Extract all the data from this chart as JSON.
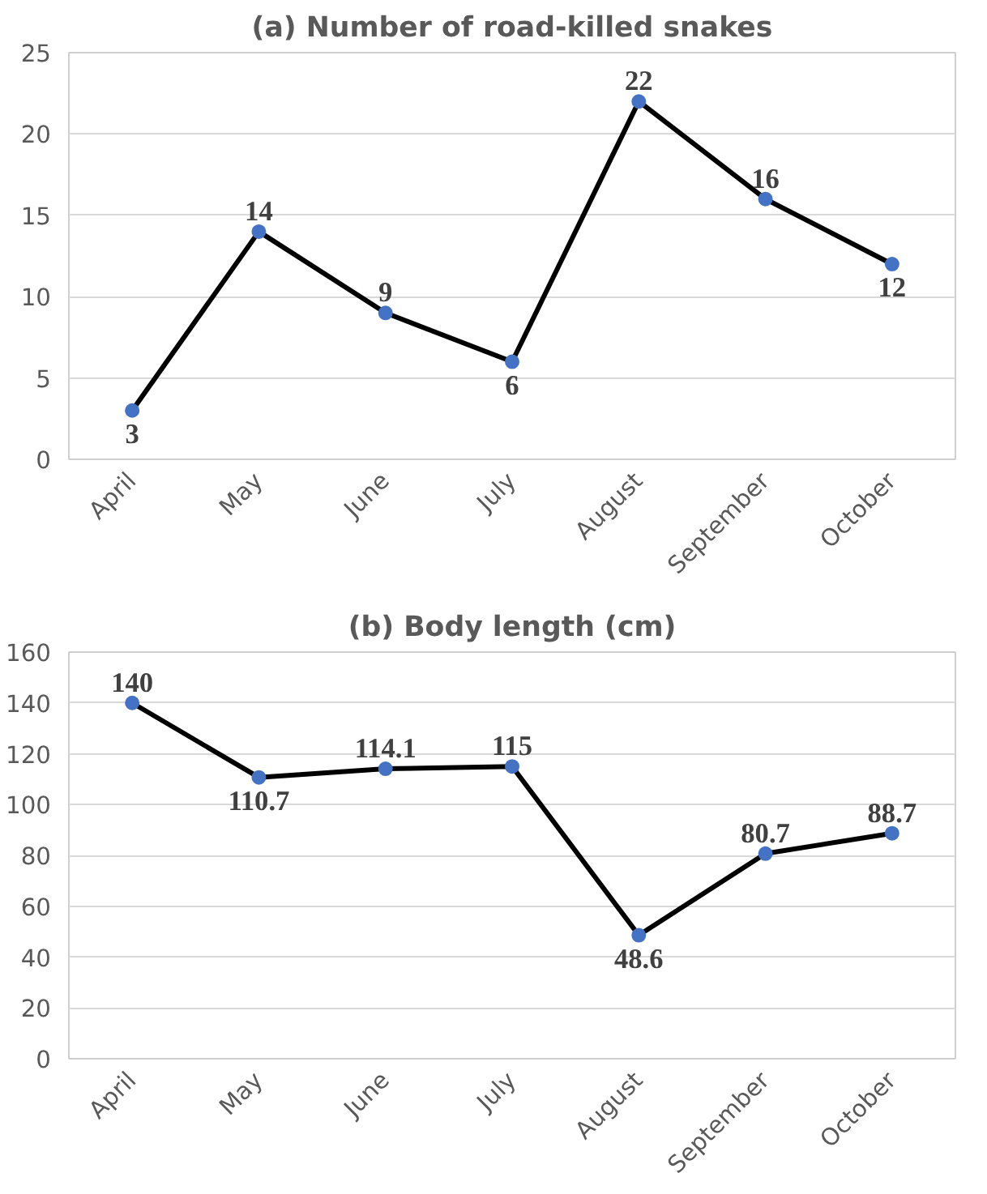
{
  "chart_data": [
    {
      "type": "line",
      "title": "(a) Number of road-killed snakes",
      "categories": [
        "April",
        "May",
        "June",
        "July",
        "August",
        "September",
        "October"
      ],
      "values": [
        3,
        14,
        9,
        6,
        22,
        16,
        12
      ],
      "color": "#000000",
      "colors": [
        "#4472c4",
        "#4472c4",
        "#4472c4",
        "#4472c4",
        "#4472c4",
        "#4472c4",
        "#4472c4"
      ],
      "ylim": [
        0,
        25
      ],
      "yticks": [
        0,
        5,
        10,
        15,
        20,
        25
      ],
      "grid": "y",
      "marker": "circle",
      "line_style": "solid",
      "data_labels": true
    },
    {
      "type": "line",
      "title": "(b) Body length (cm)",
      "categories": [
        "April",
        "May",
        "June",
        "July",
        "August",
        "September",
        "October"
      ],
      "values": [
        140,
        110.7,
        114.1,
        115,
        48.6,
        80.7,
        88.7
      ],
      "color": "#000000",
      "colors": [
        "#4472c4",
        "#4472c4",
        "#4472c4",
        "#4472c4",
        "#4472c4",
        "#4472c4",
        "#4472c4"
      ],
      "ylim": [
        0,
        160
      ],
      "yticks": [
        0,
        20,
        40,
        60,
        80,
        100,
        120,
        140,
        160
      ],
      "grid": "y",
      "marker": "circle",
      "line_style": "solid",
      "data_labels": true
    }
  ]
}
